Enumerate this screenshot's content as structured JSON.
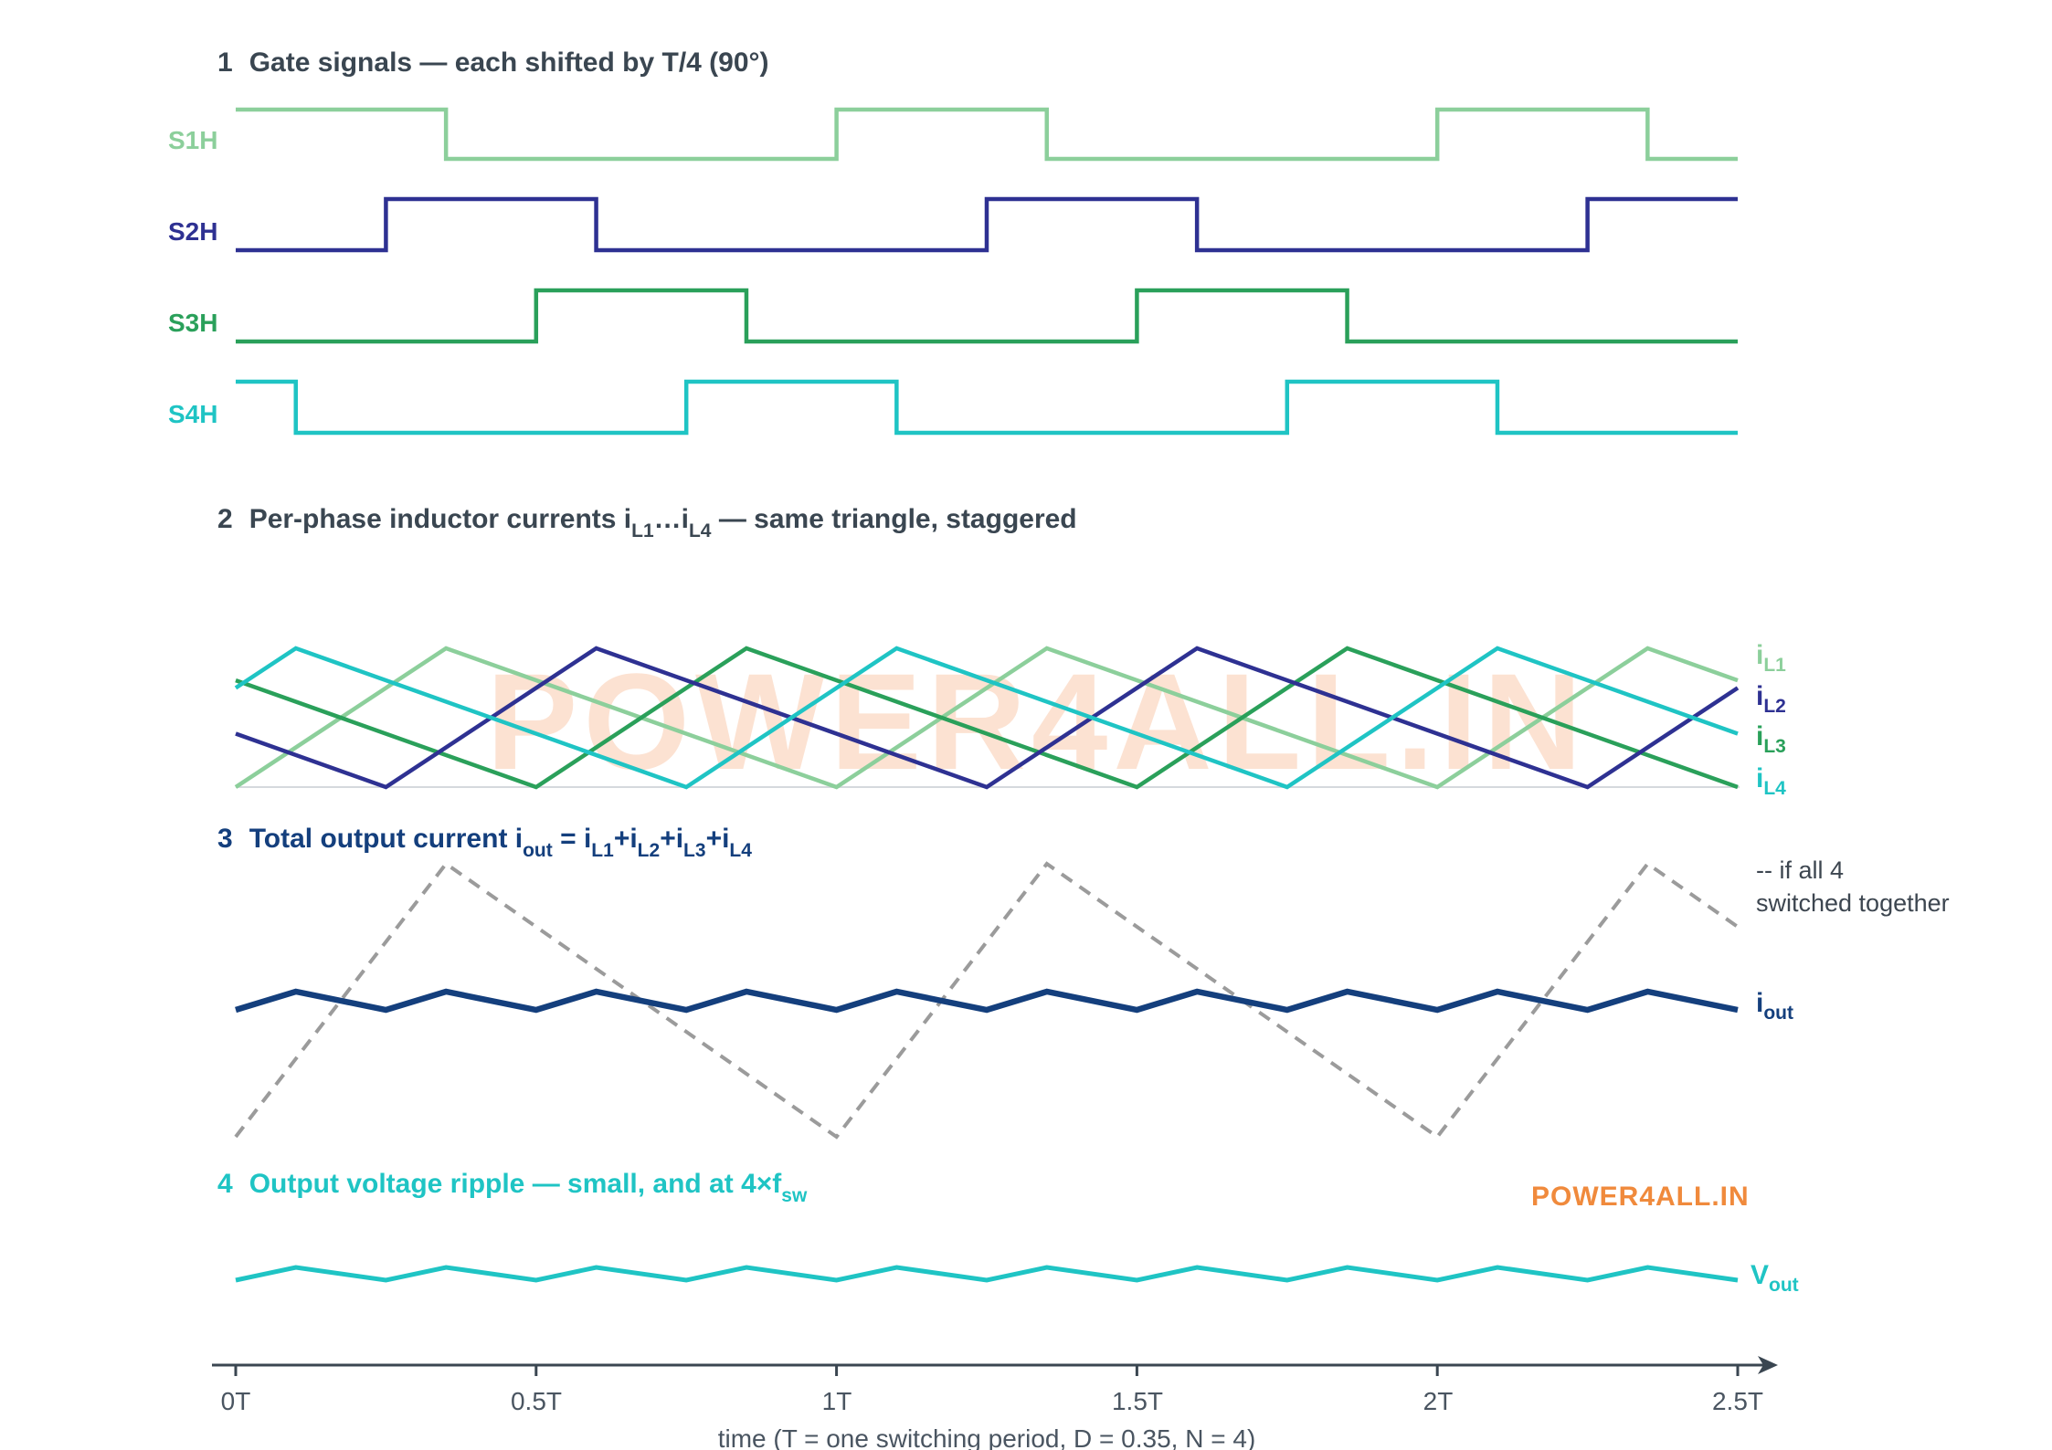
{
  "sections": {
    "gate": {
      "num": "1",
      "title": "Gate signals — each shifted by T/4 (90°)",
      "channels": [
        {
          "label": "S1H",
          "color": "#8ccf9b",
          "delay": 0
        },
        {
          "label": "S2H",
          "color": "#2e3192",
          "delay": 0.25
        },
        {
          "label": "S3H",
          "color": "#2aa05a",
          "delay": 0.5
        },
        {
          "label": "S4H",
          "color": "#1fc4c4",
          "delay": 0.75
        }
      ]
    },
    "inductor": {
      "num": "2",
      "title_pre": "Per-phase inductor currents i",
      "sub1": "L1",
      "mid": "…i",
      "sub2": "L4",
      "title_post": " — same triangle, staggered",
      "labels": [
        {
          "main": "i",
          "sub": "L1"
        },
        {
          "main": "i",
          "sub": "L2"
        },
        {
          "main": "i",
          "sub": "L3"
        },
        {
          "main": "i",
          "sub": "L4"
        }
      ]
    },
    "total": {
      "num": "3",
      "title_pre": "Total output current i",
      "title_sub": "out",
      "eq": " = i",
      "terms": [
        "L1",
        "L2",
        "L3",
        "L4"
      ],
      "plus": "+i",
      "note_line1": "-- if all 4",
      "note_line2": "switched together",
      "label_main": "i",
      "label_sub": "out",
      "color": "#143f7d",
      "dashed_color": "#9b9b9b"
    },
    "ripple": {
      "num": "4",
      "title_pre": "Output voltage ripple — small, and at 4×f",
      "title_sub": "sw",
      "label_main": "V",
      "label_sub": "out",
      "color": "#1fc4c4"
    }
  },
  "axis": {
    "ticks": [
      "0T",
      "0.5T",
      "1T",
      "1.5T",
      "2T",
      "2.5T"
    ],
    "label": "time (T = one switching period, D = 0.35, N = 4)"
  },
  "watermark": "POWER4ALL.IN",
  "brand": "POWER4ALL.IN",
  "chart_data": {
    "type": "line",
    "x_range": [
      0,
      2.5
    ],
    "x_unit": "T",
    "duty_cycle": 0.35,
    "phases": 4,
    "phase_shift": 0.25,
    "series": [
      {
        "name": "S1H",
        "kind": "gate",
        "delay": 0
      },
      {
        "name": "S2H",
        "kind": "gate",
        "delay": 0.25
      },
      {
        "name": "S3H",
        "kind": "gate",
        "delay": 0.5
      },
      {
        "name": "S4H",
        "kind": "gate",
        "delay": 0.75
      },
      {
        "name": "iL1",
        "kind": "triangle",
        "delay": 0
      },
      {
        "name": "iL2",
        "kind": "triangle",
        "delay": 0.25
      },
      {
        "name": "iL3",
        "kind": "triangle",
        "delay": 0.5
      },
      {
        "name": "iL4",
        "kind": "triangle",
        "delay": 0.75
      },
      {
        "name": "iout",
        "kind": "sum"
      },
      {
        "name": "Vout",
        "kind": "ripple"
      }
    ]
  }
}
